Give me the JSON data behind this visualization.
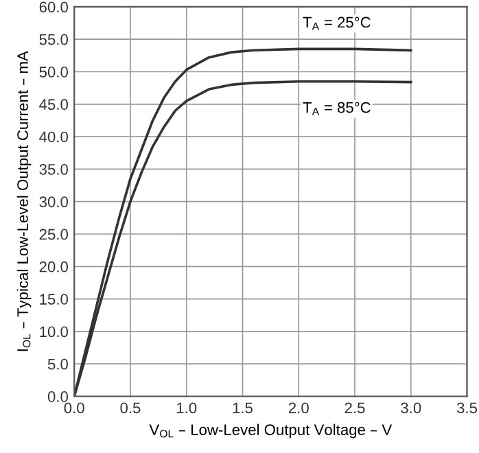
{
  "chart_data": {
    "type": "line",
    "xlabel": "V$_{OL}$ – Low-Level Output Voltage – V",
    "ylabel": "I$_{OL}$ – Typical Low-Level Output Current – mA",
    "x": [
      0,
      0.1,
      0.2,
      0.3,
      0.4,
      0.5,
      0.6,
      0.7,
      0.8,
      0.9,
      1.0,
      1.2,
      1.4,
      1.6,
      2.0,
      2.5,
      3.0
    ],
    "series": [
      {
        "color": "#333333",
        "values": [
          0,
          7,
          14,
          21,
          27.5,
          33.5,
          38,
          42.5,
          46,
          48.5,
          50.3,
          52.2,
          53,
          53.3,
          53.5,
          53.5,
          53.3
        ]
      },
      {
        "color": "#333333",
        "values": [
          0,
          6,
          12.5,
          18.5,
          24.5,
          30,
          34.5,
          38.5,
          41.5,
          44,
          45.5,
          47.3,
          48,
          48.3,
          48.5,
          48.5,
          48.4
        ]
      }
    ],
    "annotations": [
      "T$_{A}$ = 25°C",
      "T$_{A}$ = 85°C"
    ],
    "xlim": [
      0,
      3.5
    ],
    "ylim": [
      0,
      60
    ],
    "xticks": [
      {
        "value": 0,
        "label": "0.0"
      },
      {
        "value": 0.5,
        "label": "0.5"
      },
      {
        "value": 1,
        "label": "1.0"
      },
      {
        "value": 1.5,
        "label": "1.5"
      },
      {
        "value": 2,
        "label": "2.0"
      },
      {
        "value": 2.5,
        "label": "2.5"
      },
      {
        "value": 3,
        "label": "3.0"
      },
      {
        "value": 3.5,
        "label": "3.5"
      }
    ],
    "yticks": [
      {
        "value": 0,
        "label": "0.0"
      },
      {
        "value": 5,
        "label": "5.0"
      },
      {
        "value": 10,
        "label": "10.0"
      },
      {
        "value": 15,
        "label": "15.0"
      },
      {
        "value": 20,
        "label": "20.0"
      },
      {
        "value": 25,
        "label": "25.0"
      },
      {
        "value": 30,
        "label": "30.0"
      },
      {
        "value": 35,
        "label": "35.0"
      },
      {
        "value": 40,
        "label": "40.0"
      },
      {
        "value": 45,
        "label": "45.0"
      },
      {
        "value": 50,
        "label": "50.0"
      },
      {
        "value": 55,
        "label": "55.0"
      },
      {
        "value": 60,
        "label": "60.0"
      }
    ],
    "grid": true
  }
}
